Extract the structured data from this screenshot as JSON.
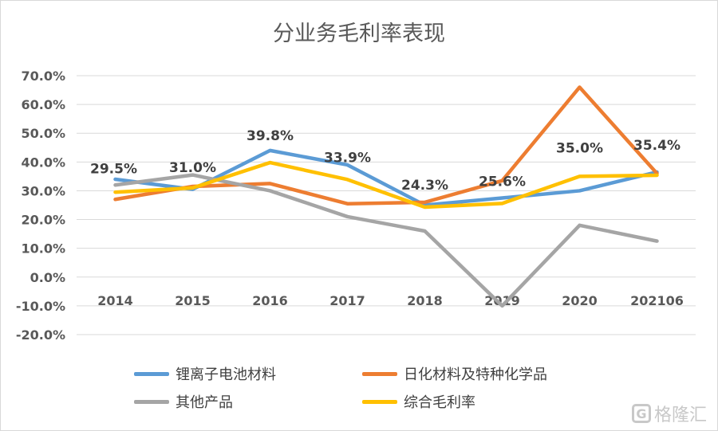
{
  "chart_data": {
    "type": "line",
    "title": "分业务毛利率表现",
    "categories": [
      "2014",
      "2015",
      "2016",
      "2017",
      "2018",
      "2019",
      "2020",
      "202106"
    ],
    "ylim": [
      -20,
      70
    ],
    "yticks": [
      "70.0%",
      "60.0%",
      "50.0%",
      "40.0%",
      "30.0%",
      "20.0%",
      "10.0%",
      "0.0%",
      "-10.0%",
      "-20.0%"
    ],
    "grid": true,
    "legend_position": "bottom",
    "series": [
      {
        "name": "锂离子电池材料",
        "color": "#5b9bd5",
        "values": [
          34.0,
          30.5,
          44.0,
          39.0,
          25.0,
          27.5,
          30.0,
          36.5
        ]
      },
      {
        "name": "日化材料及特种化学品",
        "color": "#ed7d31",
        "values": [
          27.0,
          31.5,
          32.5,
          25.5,
          26.0,
          33.5,
          66.0,
          36.0
        ]
      },
      {
        "name": "其他产品",
        "color": "#a5a5a5",
        "values": [
          32.0,
          35.5,
          30.0,
          21.0,
          16.0,
          -10.0,
          18.0,
          12.5
        ]
      },
      {
        "name": "综合毛利率",
        "color": "#ffc000",
        "values": [
          29.5,
          31.0,
          39.8,
          33.9,
          24.3,
          25.6,
          35.0,
          35.4
        ]
      }
    ],
    "data_labels": [
      "29.5%",
      "31.0%",
      "39.8%",
      "33.9%",
      "24.3%",
      "25.6%",
      "35.0%",
      "35.4%"
    ]
  },
  "watermark": {
    "icon": "G",
    "text": "格隆汇"
  }
}
